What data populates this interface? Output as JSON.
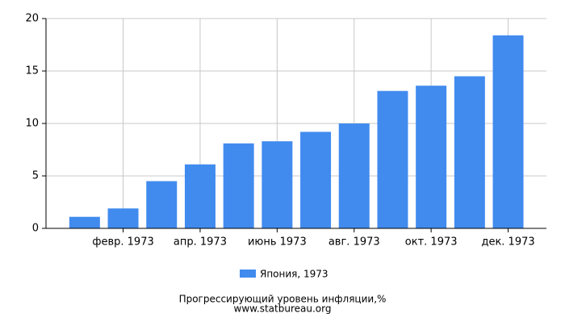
{
  "chart_data": {
    "type": "bar",
    "title": "Прогрессирующий уровень инфляции,%",
    "source": "www.statbureau.org",
    "categories": [
      null,
      "февр. 1973",
      null,
      "апр. 1973",
      null,
      "июнь 1973",
      null,
      "авг. 1973",
      null,
      "окт. 1973",
      null,
      "дек. 1973"
    ],
    "series": [
      {
        "name": "Япония, 1973",
        "color": "#418bef",
        "values": [
          1.1,
          1.9,
          4.5,
          6.1,
          8.1,
          8.3,
          9.2,
          10.0,
          13.1,
          13.6,
          14.5,
          18.4
        ]
      }
    ],
    "ylim": [
      0,
      20
    ],
    "yticks": [
      0,
      5,
      10,
      15,
      20
    ],
    "grid": true
  }
}
